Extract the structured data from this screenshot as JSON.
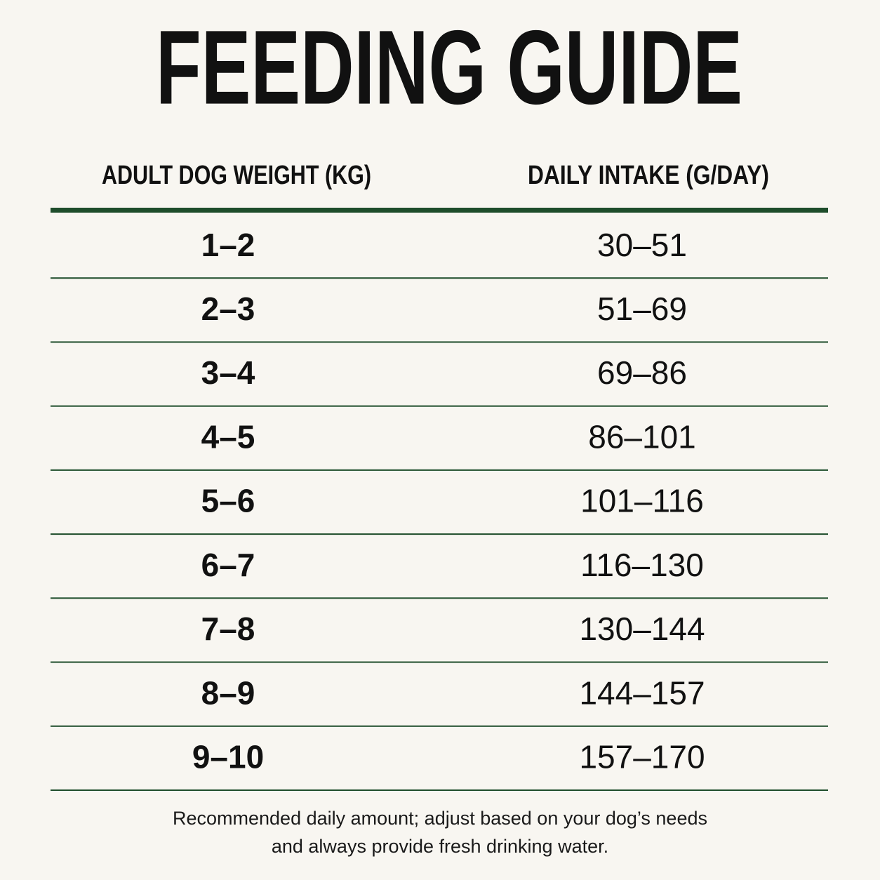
{
  "header": {
    "title": "FEEDING GUIDE"
  },
  "table": {
    "columns": [
      "ADULT DOG WEIGHT (KG)",
      "DAILY INTAKE (G/DAY)"
    ],
    "rows": [
      [
        "1–2",
        "30–51"
      ],
      [
        "2–3",
        "51–69"
      ],
      [
        "3–4",
        "69–86"
      ],
      [
        "4–5",
        "86–101"
      ],
      [
        "5–6",
        "101–116"
      ],
      [
        "6–7",
        "116–130"
      ],
      [
        "7–8",
        "130–144"
      ],
      [
        "8–9",
        "144–157"
      ],
      [
        "9–10",
        "157–170"
      ]
    ]
  },
  "footnote": [
    "Recommended daily amount; adjust based on your dog’s needs",
    "and always provide fresh drinking water."
  ]
}
